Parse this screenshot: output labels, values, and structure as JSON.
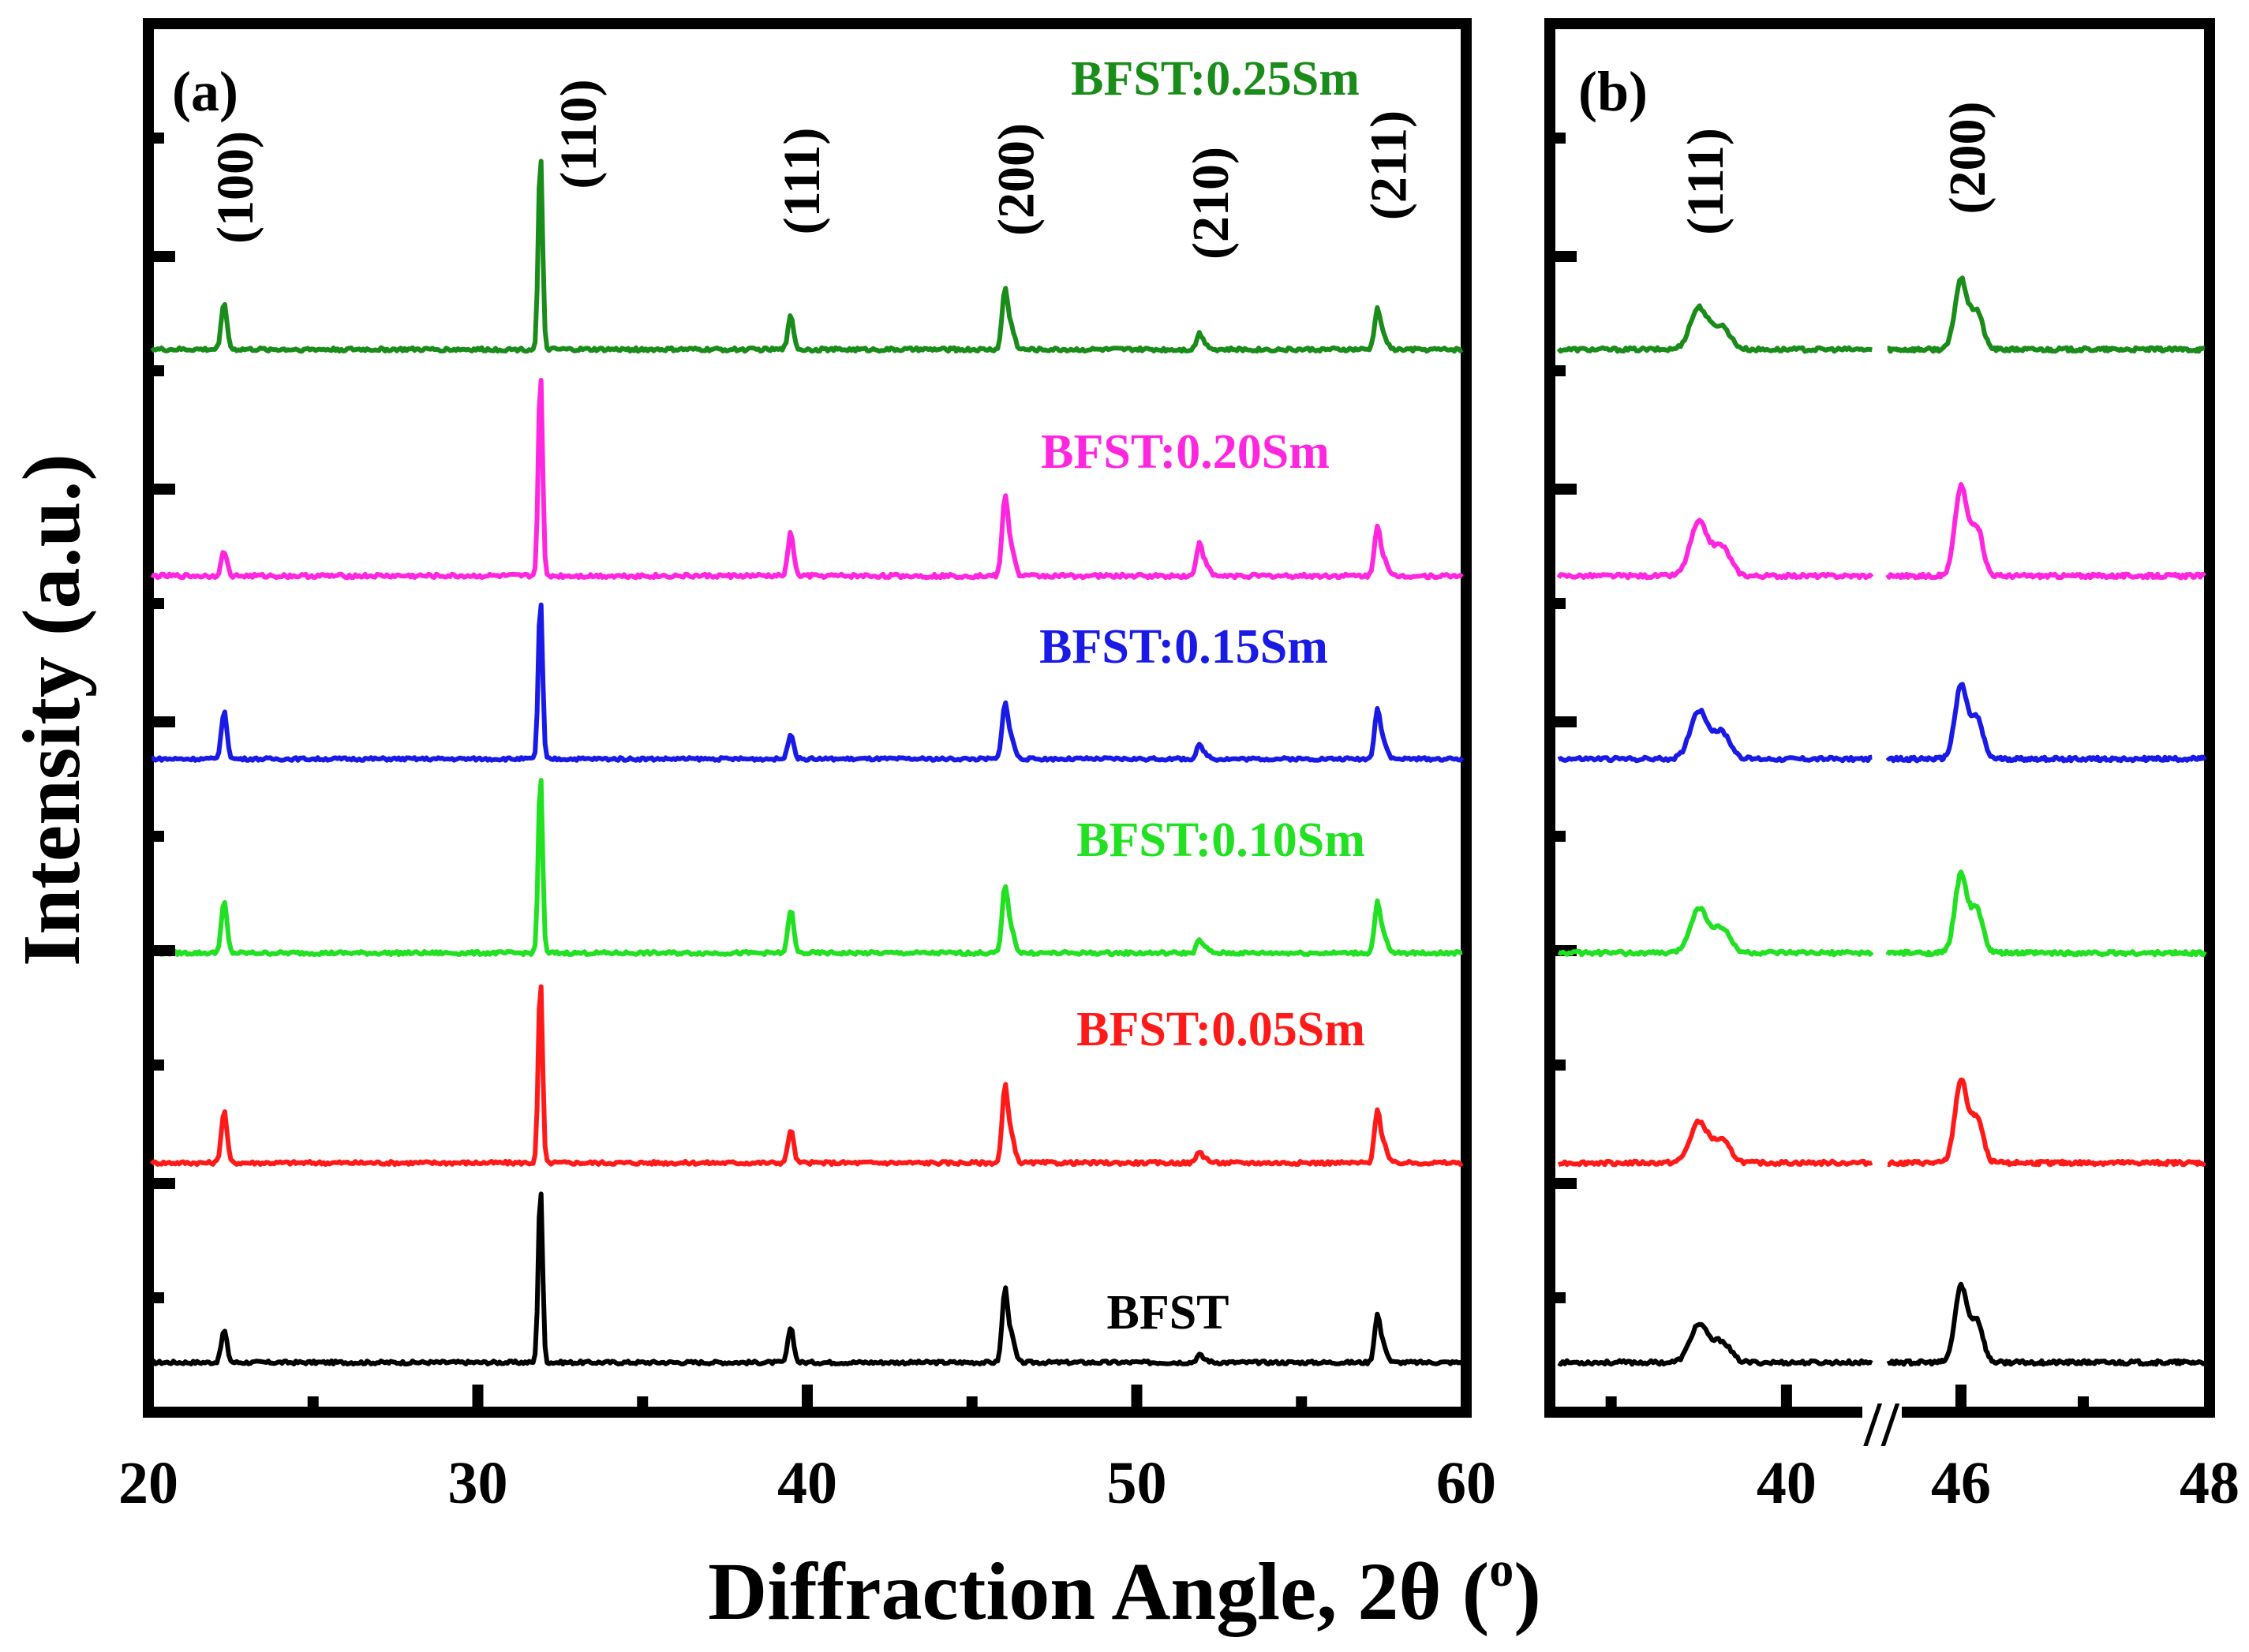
{
  "chart_data": [
    {
      "panel": "a",
      "type": "line",
      "panel_label": "(a)",
      "xlabel": "Diffraction Angle, 2θ (",
      "xlabel_superscript": "o",
      "xlabel_close": ")",
      "ylabel": "Intensity (a.u.)",
      "xlim": [
        20,
        60
      ],
      "xticks": [
        20,
        30,
        40,
        50,
        60
      ],
      "tick_labels": [
        "20",
        "30",
        "40",
        "50",
        "60"
      ],
      "minor_xticks": [
        25,
        35,
        45,
        55
      ],
      "yticks_note": "y axis unlabeled (arbitrary units)",
      "peaks": [
        {
          "label": "(100)",
          "angle": 22.3
        },
        {
          "label": "(110)",
          "angle": 31.9
        },
        {
          "label": "(111)",
          "angle": 39.5
        },
        {
          "label": "(200)",
          "angle": 46.0
        },
        {
          "label": "(210)",
          "angle": 51.9
        },
        {
          "label": "(211)",
          "angle": 57.3
        }
      ],
      "series": [
        {
          "name": "BFST",
          "color": "#000000",
          "baseline": 0,
          "intensities": [
            0.18,
            1.0,
            0.2,
            0.4,
            0.04,
            0.26
          ]
        },
        {
          "name": "BFST:0.05Sm",
          "color": "#ff1a1a",
          "baseline": 1,
          "intensities": [
            0.28,
            1.0,
            0.18,
            0.4,
            0.06,
            0.28
          ]
        },
        {
          "name": "BFST:0.10Sm",
          "color": "#22e022",
          "baseline": 2,
          "intensities": [
            0.28,
            1.0,
            0.24,
            0.36,
            0.07,
            0.27
          ]
        },
        {
          "name": "BFST:0.15Sm",
          "color": "#1a1ae6",
          "baseline": 3,
          "intensities": [
            0.29,
            1.0,
            0.16,
            0.34,
            0.08,
            0.3
          ]
        },
        {
          "name": "BFST:0.20Sm",
          "color": "#ff26e0",
          "baseline": 4,
          "intensities": [
            0.12,
            1.0,
            0.21,
            0.38,
            0.16,
            0.24
          ]
        },
        {
          "name": "BFST:0.25Sm",
          "color": "#1a8c1a",
          "baseline": 5,
          "intensities": [
            0.24,
            1.0,
            0.17,
            0.3,
            0.08,
            0.2
          ]
        }
      ]
    },
    {
      "panel": "b",
      "type": "line",
      "panel_label": "(b)",
      "xlim_segments": [
        [
          38.7,
          40.5
        ],
        [
          45.4,
          48
        ]
      ],
      "xticks": [
        40,
        46,
        48
      ],
      "tick_labels": [
        "40",
        "46",
        "48"
      ],
      "axis_break": "//",
      "peaks": [
        {
          "label": "(111)",
          "angle": 39.5
        },
        {
          "label": "(200)",
          "angle": 46.0
        }
      ],
      "series": [
        {
          "name": "BFST",
          "color": "#000000",
          "baseline": 0,
          "intensities": [
            0.3,
            0.6
          ]
        },
        {
          "name": "BFST:0.05Sm",
          "color": "#ff1a1a",
          "baseline": 1,
          "intensities": [
            0.32,
            0.65
          ]
        },
        {
          "name": "BFST:0.10Sm",
          "color": "#22e022",
          "baseline": 2,
          "intensities": [
            0.35,
            0.62
          ]
        },
        {
          "name": "BFST:0.15Sm",
          "color": "#1a1ae6",
          "baseline": 3,
          "intensities": [
            0.38,
            0.58
          ]
        },
        {
          "name": "BFST:0.20Sm",
          "color": "#ff26e0",
          "baseline": 4,
          "intensities": [
            0.42,
            0.7
          ]
        },
        {
          "name": "BFST:0.25Sm",
          "color": "#1a8c1a",
          "baseline": 5,
          "intensities": [
            0.33,
            0.55
          ]
        }
      ]
    }
  ]
}
